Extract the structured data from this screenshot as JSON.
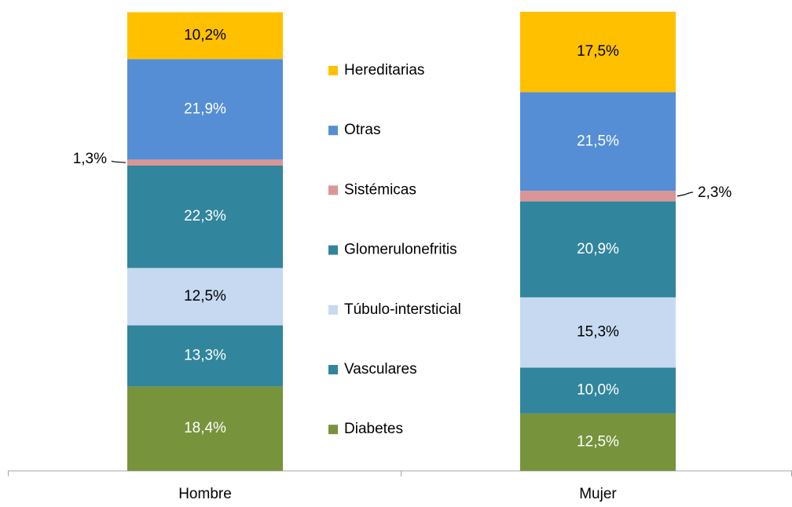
{
  "chart_data": {
    "type": "stacked_bar",
    "categories": [
      "Hombre",
      "Mujer"
    ],
    "ylim": [
      0,
      100
    ],
    "series": [
      {
        "name": "Diabetes",
        "color": "#77933c",
        "values": [
          18.4,
          12.5
        ],
        "value_labels": [
          "18,4%",
          "12,5%"
        ]
      },
      {
        "name": "Vasculares",
        "color": "#31859c",
        "values": [
          13.3,
          10.0
        ],
        "value_labels": [
          "13,3%",
          "10,0%"
        ]
      },
      {
        "name": "Túbulo-intersticial",
        "color": "#c6d9f1",
        "values": [
          12.5,
          15.3
        ],
        "value_labels": [
          "12,5%",
          "15,3%"
        ]
      },
      {
        "name": "Glomerulonefritis",
        "color": "#31859c",
        "values": [
          22.3,
          20.9
        ],
        "value_labels": [
          "22,3%",
          "20,9%"
        ]
      },
      {
        "name": "Sistémicas",
        "color": "#d99694",
        "values": [
          1.3,
          2.3
        ],
        "value_labels": [
          "1,3%",
          "2,3%"
        ]
      },
      {
        "name": "Otras",
        "color": "#558ed5",
        "values": [
          21.9,
          21.5
        ],
        "value_labels": [
          "21,9%",
          "21,5%"
        ]
      },
      {
        "name": "Hereditarias",
        "color": "#ffc000",
        "values": [
          10.2,
          17.5
        ],
        "value_labels": [
          "10,2%",
          "17,5%"
        ]
      }
    ]
  }
}
